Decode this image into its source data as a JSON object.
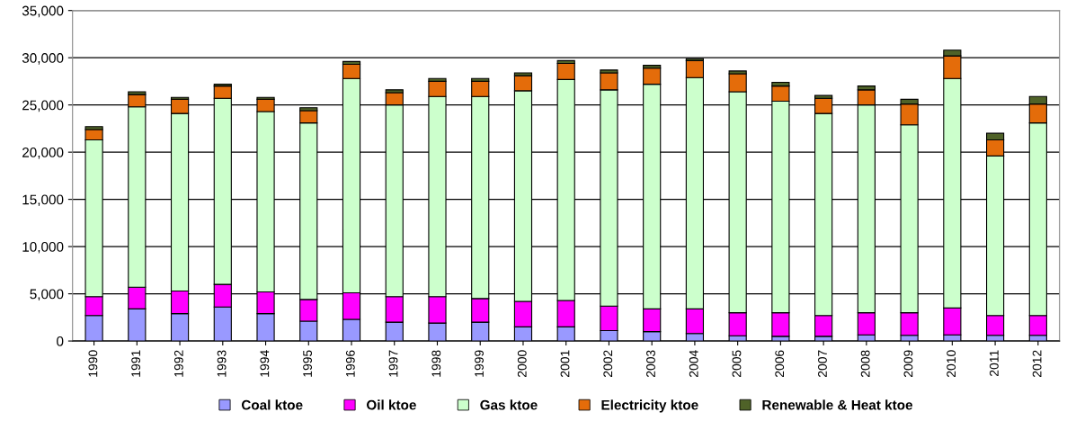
{
  "chart_data": {
    "type": "bar",
    "stacked": true,
    "grid": "y",
    "legend": "bottom",
    "categories": [
      "1990",
      "1991",
      "1992",
      "1993",
      "1994",
      "1995",
      "1996",
      "1997",
      "1998",
      "1999",
      "2000",
      "2001",
      "2002",
      "2003",
      "2004",
      "2005",
      "2006",
      "2007",
      "2008",
      "2009",
      "2010",
      "2011",
      "2012"
    ],
    "ylim": [
      0,
      35000
    ],
    "yticks": [
      {
        "value": 0,
        "label": "0"
      },
      {
        "value": 5000,
        "label": "5,000"
      },
      {
        "value": 10000,
        "label": "10,000"
      },
      {
        "value": 15000,
        "label": "15,000"
      },
      {
        "value": 20000,
        "label": "20,000"
      },
      {
        "value": 25000,
        "label": "25,000"
      },
      {
        "value": 30000,
        "label": "30,000"
      },
      {
        "value": 35000,
        "label": "35,000"
      }
    ],
    "series": [
      {
        "name": "Coal ktoe",
        "color": "#9999ff",
        "values": [
          2700,
          3400,
          2900,
          3600,
          2900,
          2100,
          2300,
          2000,
          1900,
          2000,
          1500,
          1500,
          1100,
          1000,
          800,
          550,
          500,
          500,
          650,
          600,
          650,
          600,
          600
        ]
      },
      {
        "name": "Oil ktoe",
        "color": "#ff00ff",
        "values": [
          2000,
          2300,
          2400,
          2400,
          2300,
          2300,
          2800,
          2700,
          2800,
          2500,
          2700,
          2800,
          2600,
          2400,
          2600,
          2450,
          2500,
          2200,
          2350,
          2400,
          2850,
          2100,
          2100
        ]
      },
      {
        "name": "Gas ktoe",
        "color": "#ccffcc",
        "values": [
          16600,
          19100,
          18800,
          19700,
          19100,
          18700,
          22700,
          20300,
          21200,
          21400,
          22300,
          23400,
          22900,
          23800,
          24500,
          23400,
          22400,
          21400,
          22000,
          19900,
          24300,
          16900,
          20400
        ]
      },
      {
        "name": "Electricity ktoe",
        "color": "#e46c0a",
        "values": [
          1100,
          1300,
          1500,
          1300,
          1300,
          1300,
          1500,
          1300,
          1600,
          1600,
          1600,
          1700,
          1800,
          1700,
          1800,
          1900,
          1600,
          1600,
          1600,
          2200,
          2400,
          1700,
          2000
        ]
      },
      {
        "name": "Renewable & Heat ktoe",
        "color": "#4f6228",
        "values": [
          300,
          300,
          200,
          200,
          200,
          300,
          300,
          300,
          300,
          300,
          300,
          300,
          300,
          300,
          200,
          300,
          400,
          300,
          400,
          500,
          600,
          700,
          800
        ]
      }
    ]
  }
}
